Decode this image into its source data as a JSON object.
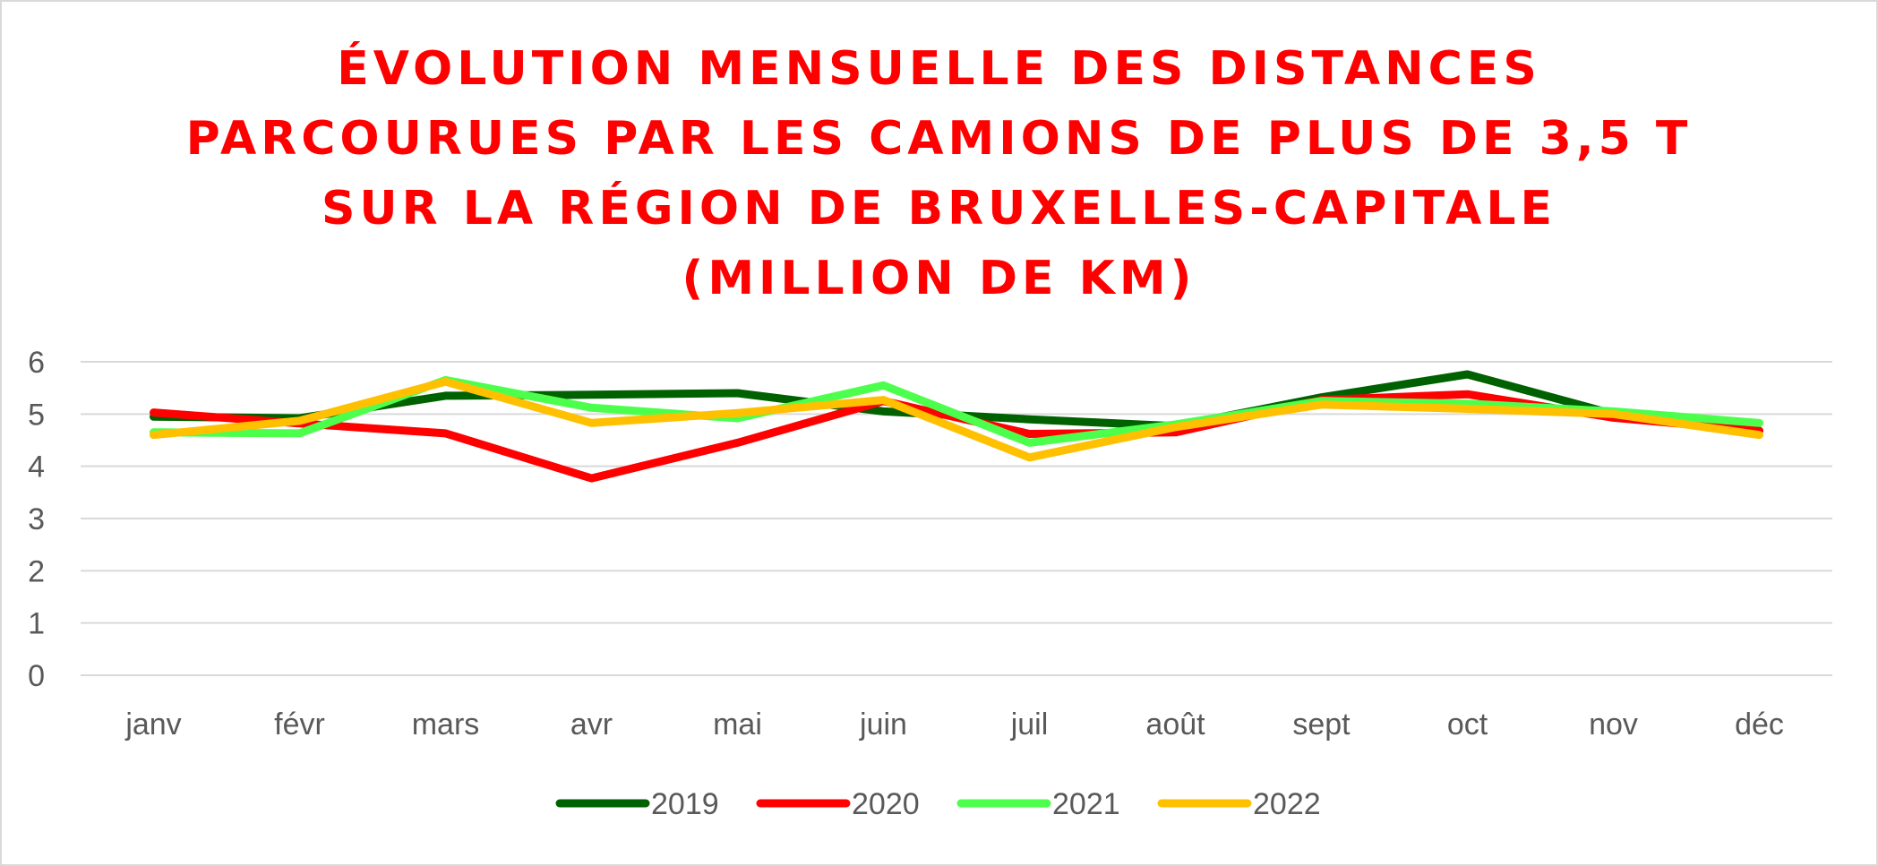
{
  "chart_data": {
    "type": "line",
    "title_lines": [
      "ÉVOLUTION MENSUELLE DES DISTANCES",
      "PARCOURUES PAR LES CAMIONS DE PLUS DE 3,5 T",
      "SUR LA RÉGION DE BRUXELLES-CAPITALE",
      "(MILLION DE KM)"
    ],
    "xlabel": "",
    "ylabel": "",
    "ylim": [
      0,
      6
    ],
    "yticks": [
      "0",
      "1",
      "2",
      "3",
      "4",
      "5",
      "6"
    ],
    "grid": true,
    "legend_position": "bottom",
    "categories": [
      "janv",
      "févr",
      "mars",
      "avr",
      "mai",
      "juin",
      "juil",
      "août",
      "sept",
      "oct",
      "nov",
      "déc"
    ],
    "series": [
      {
        "name": "2019",
        "color": "#006100",
        "values": [
          4.95,
          4.92,
          5.35,
          5.37,
          5.4,
          5.05,
          4.9,
          4.77,
          5.32,
          5.76,
          5.0,
          4.68
        ]
      },
      {
        "name": "2020",
        "color": "#ff0000",
        "values": [
          5.03,
          4.82,
          4.63,
          3.77,
          4.45,
          5.25,
          4.62,
          4.65,
          5.27,
          5.38,
          4.93,
          4.68
        ]
      },
      {
        "name": "2021",
        "color": "#4dff4d",
        "values": [
          4.65,
          4.63,
          5.65,
          5.12,
          4.92,
          5.55,
          4.45,
          4.8,
          5.25,
          5.2,
          5.05,
          4.83
        ]
      },
      {
        "name": "2022",
        "color": "#ffc000",
        "values": [
          4.6,
          4.87,
          5.62,
          4.83,
          5.02,
          5.27,
          4.17,
          4.75,
          5.18,
          5.1,
          5.0,
          4.6
        ]
      }
    ]
  }
}
